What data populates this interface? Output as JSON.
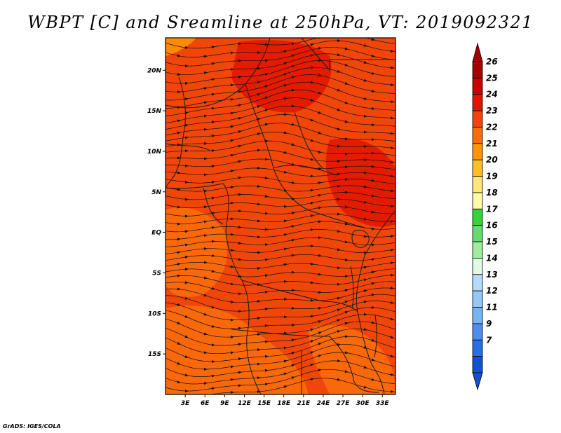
{
  "title": "WBPT [C] and Sreamline at 250hPa, VT: 2019092321",
  "credit": "GrADS: IGES/COLA",
  "map": {
    "lon_range": [
      0,
      35
    ],
    "lat_range": [
      -20,
      24
    ],
    "lat_ticks": [
      {
        "value": 20,
        "label": "20N"
      },
      {
        "value": 15,
        "label": "15N"
      },
      {
        "value": 10,
        "label": "10N"
      },
      {
        "value": 5,
        "label": "5N"
      },
      {
        "value": 0,
        "label": "EQ"
      },
      {
        "value": -5,
        "label": "5S"
      },
      {
        "value": -10,
        "label": "10S"
      },
      {
        "value": -15,
        "label": "15S"
      }
    ],
    "lon_ticks": [
      {
        "value": 3,
        "label": "3E"
      },
      {
        "value": 6,
        "label": "6E"
      },
      {
        "value": 9,
        "label": "9E"
      },
      {
        "value": 12,
        "label": "12E"
      },
      {
        "value": 15,
        "label": "15E"
      },
      {
        "value": 18,
        "label": "18E"
      },
      {
        "value": 21,
        "label": "21E"
      },
      {
        "value": 24,
        "label": "24E"
      },
      {
        "value": 27,
        "label": "27E"
      },
      {
        "value": 30,
        "label": "30E"
      },
      {
        "value": 33,
        "label": "33E"
      }
    ],
    "dominant_field_color": "#f0460a"
  },
  "colorbar": {
    "labels": [
      "26",
      "25",
      "24",
      "23",
      "22",
      "21",
      "20",
      "19",
      "18",
      "17",
      "16",
      "15",
      "14",
      "13",
      "12",
      "11",
      "9",
      "7"
    ],
    "colors": [
      "#a50000",
      "#c80000",
      "#e11400",
      "#f0460a",
      "#fa6e0a",
      "#ff9600",
      "#ffbe28",
      "#ffe678",
      "#fffaaa",
      "#37d23c",
      "#64dc6e",
      "#a0eba0",
      "#e1fae1",
      "#b4dcfa",
      "#96c8f5",
      "#78b4f0",
      "#508cf0",
      "#286ee6",
      "#1450d2"
    ],
    "arrow_top_color": "#a50000",
    "arrow_bottom_color": "#1450d2"
  }
}
